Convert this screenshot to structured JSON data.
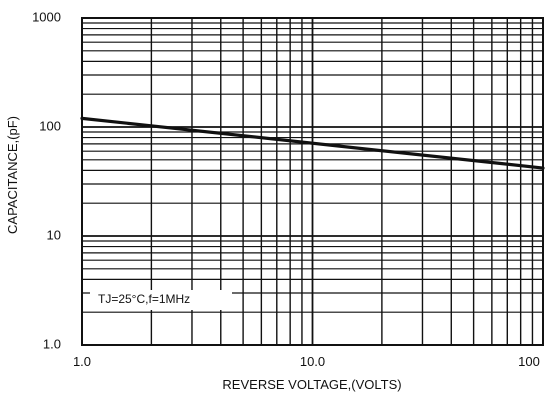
{
  "chart_data": {
    "type": "line",
    "x_scale": "log",
    "y_scale": "log",
    "xlabel": "REVERSE VOLTAGE,(VOLTS)",
    "ylabel": "CAPACITANCE,(pF)",
    "xlim": [
      1,
      100
    ],
    "ylim": [
      1,
      1000
    ],
    "x_ticks": [
      {
        "value": 1,
        "label": "1.0"
      },
      {
        "value": 10,
        "label": "10.0"
      },
      {
        "value": 100,
        "label": "100"
      }
    ],
    "y_ticks": [
      {
        "value": 1,
        "label": "1.0"
      },
      {
        "value": 10,
        "label": "10"
      },
      {
        "value": 100,
        "label": "100"
      },
      {
        "value": 1000,
        "label": "1000"
      }
    ],
    "grid": true,
    "series": [
      {
        "x": [
          1,
          100
        ],
        "y": [
          120,
          42
        ]
      }
    ],
    "annotation": "TJ=25°C,f=1MHz",
    "colors": {
      "grid": "#111111",
      "frame": "#111111",
      "line": "#111111",
      "text": "#111111"
    }
  }
}
